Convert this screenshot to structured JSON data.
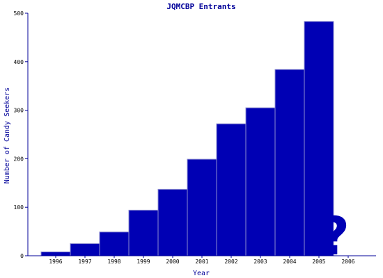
{
  "chart_data": {
    "type": "bar",
    "title": "JQMCBP Entrants",
    "xlabel": "Year",
    "ylabel": "Number of Candy Seekers",
    "ylim": [
      0,
      500
    ],
    "yticks": [
      0,
      100,
      200,
      300,
      400,
      500
    ],
    "categories": [
      "1996",
      "1997",
      "1998",
      "1999",
      "2000",
      "2001",
      "2002",
      "2003",
      "2004",
      "2005",
      "2006"
    ],
    "values": [
      8,
      25,
      49,
      94,
      137,
      199,
      272,
      305,
      384,
      483,
      null
    ],
    "annotation": "?",
    "colors": {
      "bar": "#0000b4",
      "axis": "#000099"
    }
  }
}
